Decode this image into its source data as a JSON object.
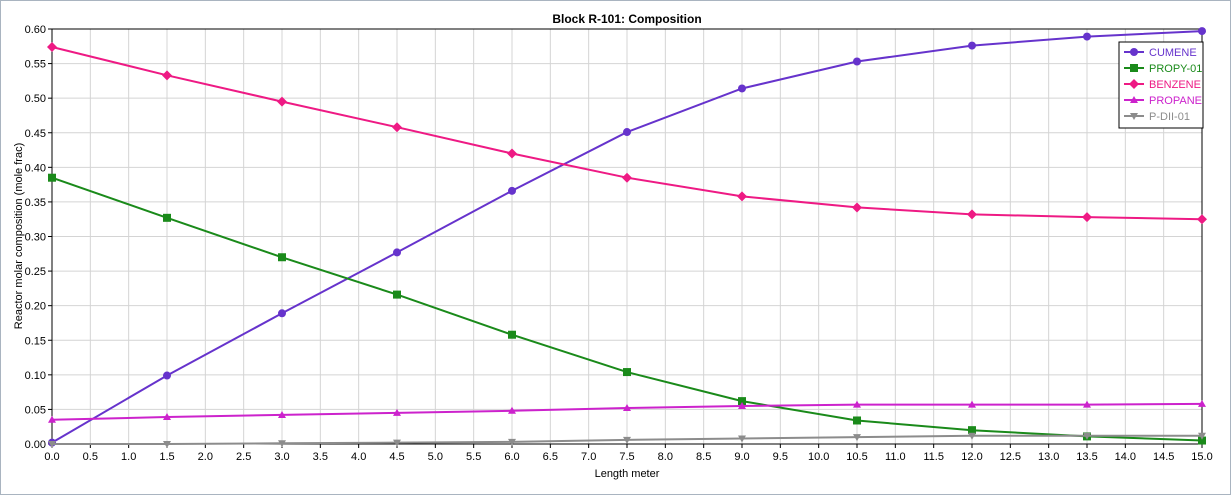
{
  "chart_data": {
    "type": "line",
    "title": "Block R-101: Composition",
    "xlabel": "Length meter",
    "ylabel": "Reactor molar composition (mole frac)",
    "xlim": [
      0,
      15
    ],
    "ylim": [
      0,
      0.6
    ],
    "x_ticks": [
      "0.0",
      "0.5",
      "1.0",
      "1.5",
      "2.0",
      "2.5",
      "3.0",
      "3.5",
      "4.0",
      "4.5",
      "5.0",
      "5.5",
      "6.0",
      "6.5",
      "7.0",
      "7.5",
      "8.0",
      "8.5",
      "9.0",
      "9.5",
      "10.0",
      "10.5",
      "11.0",
      "11.5",
      "12.0",
      "12.5",
      "13.0",
      "13.5",
      "14.0",
      "14.5",
      "15.0"
    ],
    "y_ticks": [
      "0.00",
      "0.05",
      "0.10",
      "0.15",
      "0.20",
      "0.25",
      "0.30",
      "0.35",
      "0.40",
      "0.45",
      "0.50",
      "0.55",
      "0.60"
    ],
    "grid": true,
    "legend_position": "top-right",
    "x": [
      0,
      1.5,
      3,
      4.5,
      6,
      7.5,
      9,
      10.5,
      12,
      13.5,
      15
    ],
    "series": [
      {
        "name": "CUMENE",
        "color": "#6633cc",
        "marker": "circle",
        "values": [
          0.002,
          0.099,
          0.189,
          0.277,
          0.366,
          0.451,
          0.514,
          0.553,
          0.576,
          0.589,
          0.597
        ]
      },
      {
        "name": "PROPY-01",
        "color": "#1a8a1a",
        "marker": "square",
        "values": [
          0.385,
          0.327,
          0.27,
          0.216,
          0.158,
          0.104,
          0.062,
          0.034,
          0.02,
          0.011,
          0.005
        ]
      },
      {
        "name": "BENZENE",
        "color": "#ee1a84",
        "marker": "diamond",
        "values": [
          0.574,
          0.533,
          0.495,
          0.458,
          0.42,
          0.385,
          0.358,
          0.342,
          0.332,
          0.328,
          0.325
        ]
      },
      {
        "name": "PROPANE",
        "color": "#cc22cc",
        "marker": "triangle",
        "values": [
          0.035,
          0.039,
          0.042,
          0.045,
          0.048,
          0.052,
          0.055,
          0.057,
          0.057,
          0.057,
          0.058
        ]
      },
      {
        "name": "P-DII-01",
        "color": "#8c8c8c",
        "marker": "triangle-down",
        "values": [
          0.0,
          0.0,
          0.001,
          0.002,
          0.003,
          0.006,
          0.008,
          0.01,
          0.012,
          0.012,
          0.012
        ]
      }
    ]
  }
}
